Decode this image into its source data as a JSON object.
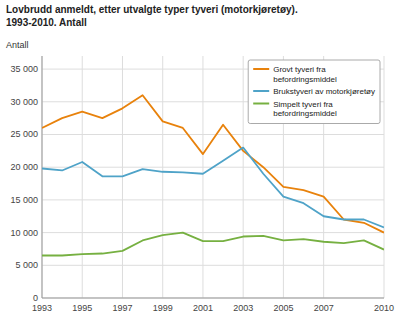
{
  "chart_data": {
    "type": "line",
    "title": "Lovbrudd anmeldt, etter utvalgte typer tyveri (motorkjøretøy).",
    "subtitle": "1993-2010. Antall",
    "ylabel": "Antall",
    "x": [
      1993,
      1994,
      1995,
      1996,
      1997,
      1998,
      1999,
      2000,
      2001,
      2002,
      2003,
      2004,
      2005,
      2006,
      2007,
      2008,
      2009,
      2010
    ],
    "series": [
      {
        "name": "Grovt tyveri fra\nbefordringsmiddel",
        "color": "#E8820C",
        "values": [
          26000,
          27500,
          28500,
          27500,
          29000,
          31000,
          27000,
          26000,
          22000,
          26500,
          22500,
          20000,
          17000,
          16500,
          15500,
          12000,
          11500,
          10000
        ]
      },
      {
        "name": "Brukstyveri av motorkjøretøy",
        "color": "#4FA3C8",
        "values": [
          19800,
          19500,
          20800,
          18600,
          18600,
          19700,
          19300,
          19200,
          19000,
          21000,
          23000,
          19000,
          15500,
          14500,
          12500,
          12000,
          12000,
          10800
        ]
      },
      {
        "name": "Simpelt tyveri fra\nbefordringsmiddel",
        "color": "#76B041",
        "values": [
          6500,
          6500,
          6700,
          6800,
          7200,
          8800,
          9600,
          10000,
          8700,
          8700,
          9400,
          9500,
          8800,
          9000,
          8600,
          8400,
          8800,
          7400
        ]
      }
    ],
    "xlim": [
      1993,
      2010
    ],
    "xticks": [
      1993,
      1995,
      1997,
      1999,
      2001,
      2003,
      2005,
      2007,
      2010
    ],
    "ylim": [
      0,
      37000
    ],
    "yticks": [
      0,
      {
        "value": 5000,
        "label": "5 000"
      },
      {
        "value": 10000,
        "label": "10 000"
      },
      {
        "value": 15000,
        "label": "15 000"
      },
      {
        "value": 20000,
        "label": "20 000"
      },
      {
        "value": 25000,
        "label": "25 000"
      },
      {
        "value": 30000,
        "label": "30 000"
      },
      {
        "value": 35000,
        "label": "35 000"
      }
    ],
    "grid": true,
    "legend": "upper right"
  }
}
